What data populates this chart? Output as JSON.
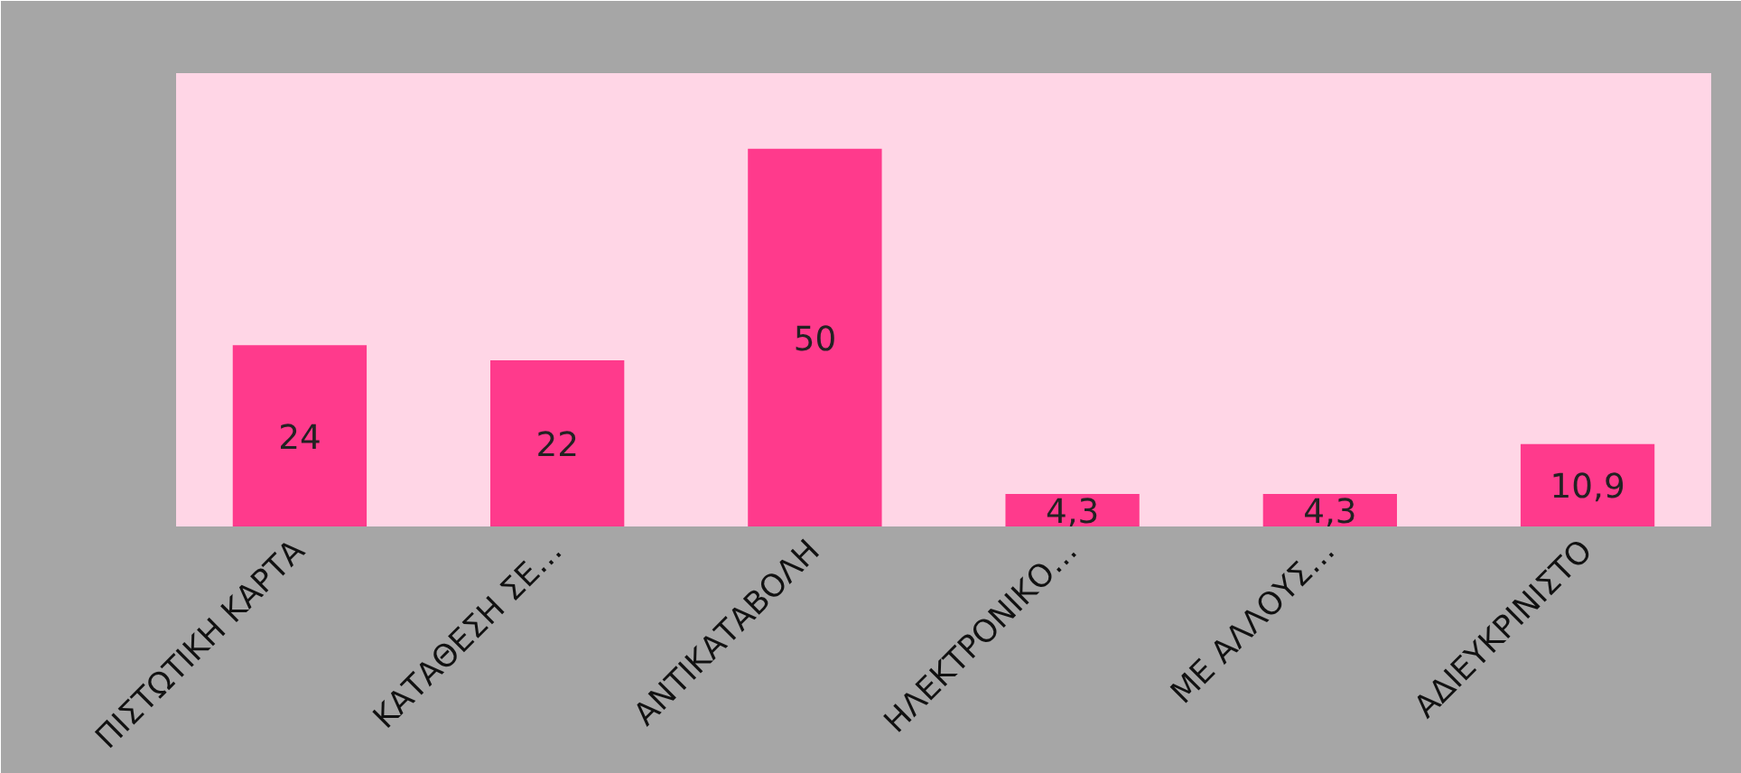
{
  "chart_data": {
    "type": "bar",
    "categories": [
      "ΠΙΣΤΩΤΙΚΗ ΚΑΡΤΑ",
      "ΚΑΤΑΘΕΣΗ ΣΕ…",
      "ΑΝΤΙΚΑΤΑΒΟΛΗ",
      "ΗΛΕΚΤΡΟΝΙΚΟ…",
      "ΜΕ ΑΛΛΟΥΣ…",
      "ΑΔΙΕΥΚΡΙΝΙΣΤΟ"
    ],
    "values": [
      24,
      22,
      50,
      4.3,
      4.3,
      10.9
    ],
    "value_labels": [
      "24",
      "22",
      "50",
      "4,3",
      "4,3",
      "10,9"
    ],
    "color": "#ff3a8c",
    "grid": false
  }
}
